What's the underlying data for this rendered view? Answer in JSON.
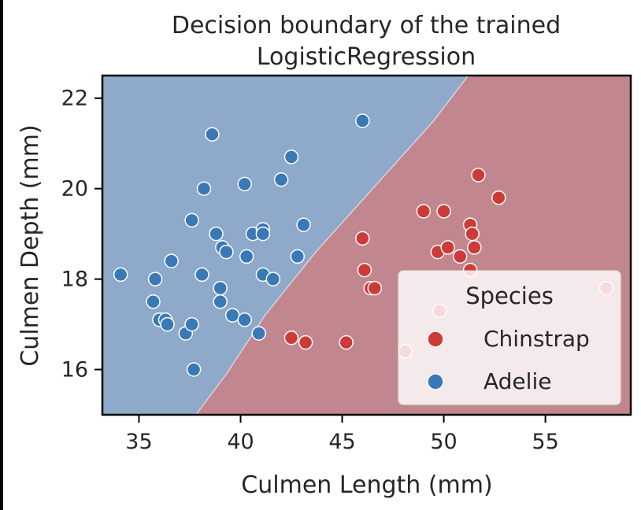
{
  "chart_data": {
    "type": "scatter",
    "title": "Decision boundary of the trained LogisticRegression",
    "title_lines": [
      "Decision boundary of the trained",
      "LogisticRegression"
    ],
    "xlabel": "Culmen Length (mm)",
    "ylabel": "Culmen Depth (mm)",
    "xlim": [
      33.2,
      59.2
    ],
    "ylim": [
      15.0,
      22.5
    ],
    "xticks": [
      35,
      40,
      45,
      50,
      55
    ],
    "yticks": [
      16,
      18,
      20,
      22
    ],
    "grid": false,
    "decision_boundary": {
      "points": [
        [
          37.8,
          15.0
        ],
        [
          39.3,
          15.9
        ],
        [
          41.2,
          17.2
        ],
        [
          43.7,
          18.6
        ],
        [
          46.5,
          20.0
        ],
        [
          49.5,
          21.5
        ],
        [
          51.2,
          22.5
        ]
      ],
      "region_above_color": "#8ea9c9",
      "region_below_color": "#c2868f"
    },
    "legend": {
      "title": "Species",
      "placement": "lower-right",
      "entries": [
        {
          "label": "Chinstrap",
          "color": "#cd3a37"
        },
        {
          "label": "Adelie",
          "color": "#3a79b8"
        }
      ]
    },
    "series": [
      {
        "name": "Chinstrap",
        "color": "#cd3a37",
        "points": [
          [
            42.5,
            16.7
          ],
          [
            43.2,
            16.6
          ],
          [
            45.2,
            16.6
          ],
          [
            46.0,
            18.9
          ],
          [
            46.1,
            18.2
          ],
          [
            46.4,
            17.8
          ],
          [
            46.6,
            17.8
          ],
          [
            48.1,
            16.4
          ],
          [
            49.0,
            19.5
          ],
          [
            49.7,
            18.6
          ],
          [
            49.8,
            17.3
          ],
          [
            50.0,
            19.5
          ],
          [
            50.2,
            18.7
          ],
          [
            50.8,
            18.5
          ],
          [
            51.3,
            19.2
          ],
          [
            51.3,
            18.2
          ],
          [
            51.4,
            19.0
          ],
          [
            51.5,
            18.7
          ],
          [
            51.7,
            20.3
          ],
          [
            52.7,
            19.8
          ],
          [
            58.0,
            17.8
          ]
        ]
      },
      {
        "name": "Adelie",
        "color": "#3a79b8",
        "points": [
          [
            34.1,
            18.1
          ],
          [
            35.7,
            17.5
          ],
          [
            35.8,
            18.0
          ],
          [
            36.0,
            17.1
          ],
          [
            36.3,
            17.1
          ],
          [
            36.4,
            17.0
          ],
          [
            36.6,
            18.4
          ],
          [
            37.3,
            16.8
          ],
          [
            37.6,
            17.0
          ],
          [
            37.6,
            19.3
          ],
          [
            37.7,
            16.0
          ],
          [
            38.1,
            18.1
          ],
          [
            38.2,
            20.0
          ],
          [
            38.6,
            21.2
          ],
          [
            38.8,
            19.0
          ],
          [
            39.0,
            17.5
          ],
          [
            39.0,
            17.8
          ],
          [
            39.1,
            18.7
          ],
          [
            39.3,
            18.6
          ],
          [
            39.6,
            17.2
          ],
          [
            40.2,
            17.1
          ],
          [
            40.2,
            20.1
          ],
          [
            40.3,
            18.5
          ],
          [
            40.6,
            19.0
          ],
          [
            40.9,
            16.8
          ],
          [
            41.1,
            18.1
          ],
          [
            41.1,
            19.1
          ],
          [
            41.1,
            19.0
          ],
          [
            41.6,
            18.0
          ],
          [
            42.0,
            20.2
          ],
          [
            42.5,
            20.7
          ],
          [
            42.8,
            18.5
          ],
          [
            43.1,
            19.2
          ],
          [
            46.0,
            21.5
          ]
        ]
      }
    ]
  }
}
